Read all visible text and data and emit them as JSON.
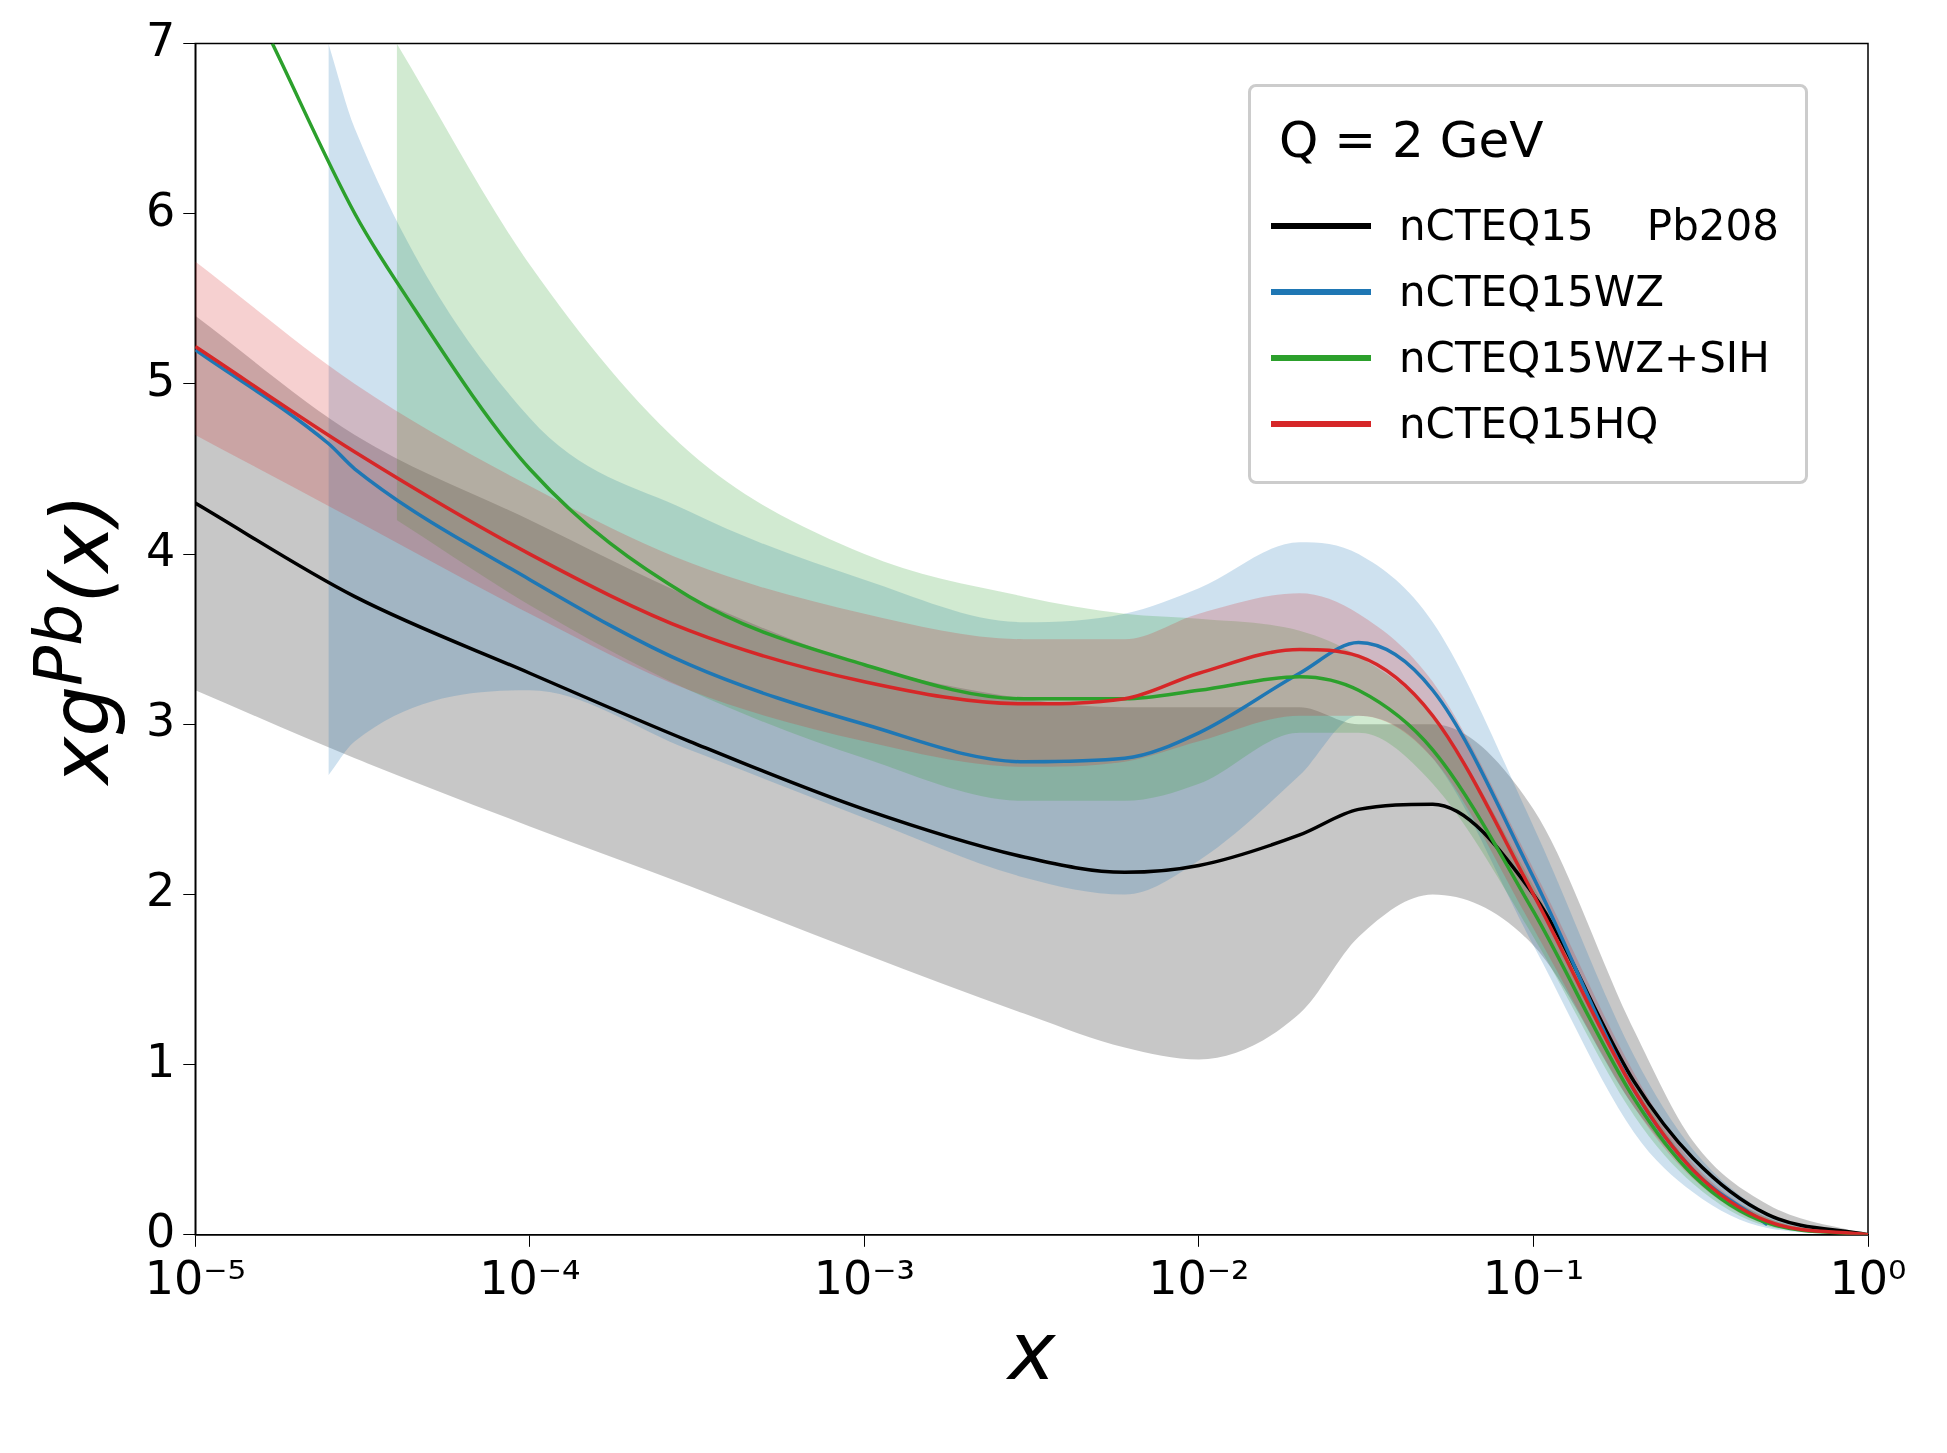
{
  "chart_data": {
    "type": "line",
    "xlabel": "x",
    "ylabel": "xg$^{Pb}$(x)",
    "legend_title": "Q = 2 GeV",
    "annotations": [
      "Pb208"
    ],
    "log": "x",
    "grid": false,
    "legend": "top right",
    "xlim": [
      1e-05,
      1
    ],
    "ylim": [
      0,
      7
    ],
    "xticks": [
      {
        "value": 1e-05,
        "label": "10⁻⁵"
      },
      {
        "value": 0.0001,
        "label": "10⁻⁴"
      },
      {
        "value": 0.001,
        "label": "10⁻³"
      },
      {
        "value": 0.01,
        "label": "10⁻²"
      },
      {
        "value": 0.1,
        "label": "10⁻¹"
      },
      {
        "value": 1,
        "label": "10⁰"
      }
    ],
    "yticks": [
      0,
      1,
      2,
      3,
      4,
      5,
      6,
      7
    ],
    "series": [
      {
        "name": "nCTEQ15",
        "color": "#000000",
        "x": [
          1e-05,
          3e-05,
          0.0001,
          0.0003,
          0.001,
          0.003,
          0.006,
          0.01,
          0.02,
          0.03,
          0.05,
          0.1,
          0.2,
          0.3,
          0.5,
          1
        ],
        "values": [
          4.3,
          3.75,
          3.3,
          2.9,
          2.5,
          2.22,
          2.13,
          2.17,
          2.35,
          2.5,
          2.53,
          2.0,
          0.9,
          0.45,
          0.12,
          0
        ],
        "lower": [
          3.2,
          2.8,
          2.4,
          2.05,
          1.65,
          1.3,
          1.1,
          1.03,
          1.3,
          1.75,
          2.0,
          1.7,
          0.75,
          0.35,
          0.08,
          0
        ],
        "upper": [
          5.4,
          4.7,
          4.2,
          3.75,
          3.35,
          3.15,
          3.1,
          3.1,
          3.1,
          3.0,
          3.0,
          2.5,
          1.2,
          0.55,
          0.18,
          0
        ]
      },
      {
        "name": "nCTEQ15WZ",
        "color": "#1f77b4",
        "x": [
          1e-05,
          2.5e-05,
          3e-05,
          0.0001,
          0.0003,
          0.001,
          0.003,
          0.006,
          0.01,
          0.02,
          0.03,
          0.05,
          0.1,
          0.2,
          0.3,
          0.5,
          1
        ],
        "values": [
          5.2,
          4.65,
          4.5,
          3.85,
          3.35,
          3.0,
          2.78,
          2.8,
          2.95,
          3.3,
          3.48,
          3.2,
          2.1,
          0.85,
          0.38,
          0.06,
          null
        ],
        "lower": [
          null,
          2.7,
          2.9,
          3.2,
          2.85,
          2.45,
          2.1,
          2.0,
          2.2,
          2.7,
          3.05,
          2.8,
          1.7,
          0.6,
          0.25,
          0.04,
          0
        ],
        "upper": [
          null,
          7,
          6.5,
          4.8,
          4.25,
          3.85,
          3.6,
          3.65,
          3.8,
          4.07,
          4.0,
          3.6,
          2.4,
          1.05,
          0.5,
          0.13,
          0
        ]
      },
      {
        "name": "nCTEQ15WZ+SIH",
        "color": "#2ca02c",
        "x": [
          1.7e-05,
          3e-05,
          4e-05,
          0.0001,
          0.0003,
          0.001,
          0.003,
          0.006,
          0.01,
          0.02,
          0.03,
          0.05,
          0.1,
          0.2,
          0.3,
          0.5,
          1
        ],
        "values": [
          7,
          6.0,
          5.6,
          4.5,
          3.75,
          3.35,
          3.15,
          3.15,
          3.2,
          3.28,
          3.2,
          2.85,
          1.9,
          0.8,
          0.35,
          0.07,
          0
        ],
        "lower": [
          null,
          null,
          4.2,
          3.7,
          3.2,
          2.8,
          2.55,
          2.55,
          2.65,
          2.95,
          2.95,
          2.65,
          1.75,
          0.7,
          0.3,
          0.05,
          0
        ],
        "upper": [
          null,
          null,
          7,
          5.7,
          4.6,
          4.0,
          3.75,
          3.65,
          3.62,
          3.55,
          3.4,
          3.05,
          2.05,
          0.9,
          0.4,
          0.1,
          0
        ]
      },
      {
        "name": "nCTEQ15HQ",
        "color": "#d62728",
        "x": [
          1e-05,
          3e-05,
          0.0001,
          0.0003,
          0.001,
          0.003,
          0.006,
          0.01,
          0.02,
          0.03,
          0.05,
          0.1,
          0.2,
          0.3,
          0.5,
          1
        ],
        "values": [
          5.22,
          4.6,
          4.0,
          3.55,
          3.25,
          3.12,
          3.15,
          3.3,
          3.44,
          3.4,
          3.05,
          2.0,
          0.85,
          0.38,
          0.08,
          0
        ],
        "lower": [
          4.7,
          4.2,
          3.65,
          3.2,
          2.9,
          2.75,
          2.78,
          2.9,
          3.05,
          3.05,
          2.8,
          1.8,
          0.75,
          0.33,
          0.06,
          0
        ],
        "upper": [
          5.72,
          5.0,
          4.4,
          3.95,
          3.65,
          3.5,
          3.5,
          3.65,
          3.77,
          3.65,
          3.25,
          2.15,
          0.95,
          0.42,
          0.1,
          0
        ]
      }
    ]
  }
}
